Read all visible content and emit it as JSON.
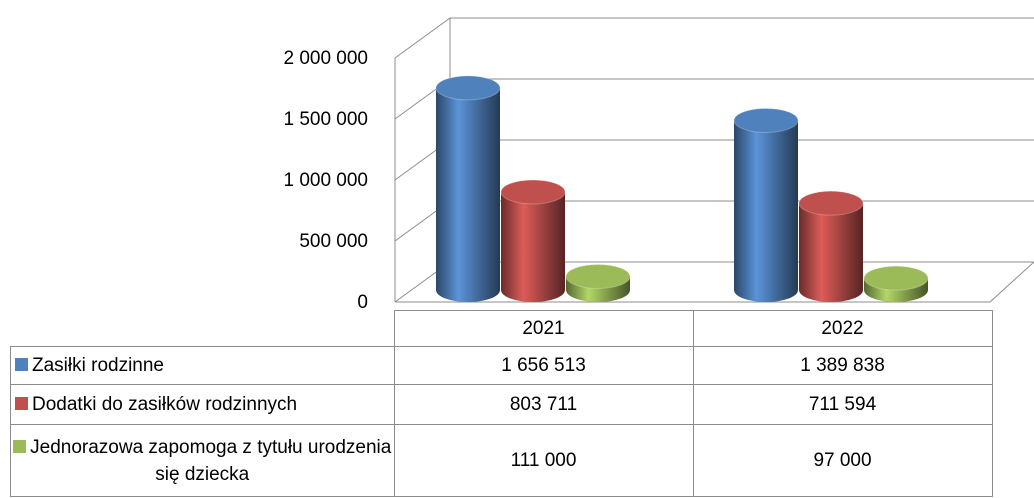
{
  "chart_data": {
    "type": "bar",
    "categories": [
      "2021",
      "2022"
    ],
    "series": [
      {
        "name": "Zasiłki rodzinne",
        "color": "#4f81bd",
        "values": [
          1656513,
          1389838
        ],
        "value_labels": [
          "1 656 513",
          "1 389 838"
        ]
      },
      {
        "name": "Dodatki do zasiłków rodzinnych",
        "color": "#c0504d",
        "values": [
          803711,
          711594
        ],
        "value_labels": [
          "803 711",
          "711 594"
        ]
      },
      {
        "name": "Jednorazowa zapomoga z tytułu urodzenia się dziecka",
        "color": "#9bbb59",
        "values": [
          111000,
          97000
        ],
        "value_labels": [
          "111 000",
          "97 000"
        ]
      }
    ],
    "ylim": [
      0,
      2000000
    ],
    "yticks": [
      0,
      {
        "value": 500000,
        "label": "500 000"
      },
      {
        "value": 1000000,
        "label": "1 000 000"
      },
      {
        "value": 1500000,
        "label": "1 500 000"
      },
      {
        "value": 2000000,
        "label": "2 000 000"
      }
    ],
    "grid": true
  }
}
